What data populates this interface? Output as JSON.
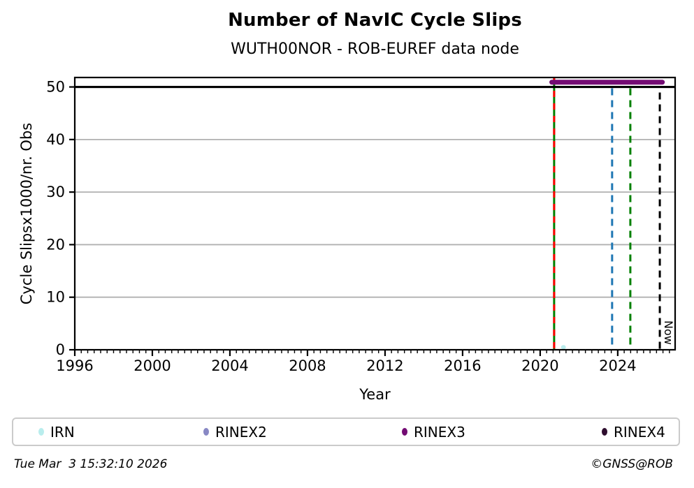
{
  "header": {
    "title": "Number of NavIC Cycle Slips",
    "subtitle": "WUTH00NOR - ROB-EUREF data node"
  },
  "footer": {
    "generated": "Tue Mar  3 15:32:10 2026",
    "copyright": "©GNSS@ROB"
  },
  "legend": {
    "items": [
      {
        "label": "IRN",
        "color": "#b9eded"
      },
      {
        "label": "RINEX2",
        "color": "#8888c4"
      },
      {
        "label": "RINEX3",
        "color": "#730b73"
      },
      {
        "label": "RINEX4",
        "color": "#2e0e2e"
      }
    ]
  },
  "chart_data": {
    "type": "line",
    "title": "Number of NavIC Cycle Slips",
    "subtitle": "WUTH00NOR - ROB-EUREF data node",
    "xlabel": "Year",
    "ylabel": "Cycle Slipsx1000/nr. Obs",
    "xlim": [
      1996,
      2026.96
    ],
    "ylim": [
      0,
      51.8
    ],
    "x_ticks": [
      1996,
      2000,
      2004,
      2008,
      2012,
      2016,
      2020,
      2024
    ],
    "x_minor_step_years": 0.33333,
    "y_ticks": [
      0,
      10,
      20,
      30,
      40,
      50
    ],
    "y_gridlines": [
      10,
      20,
      30,
      40
    ],
    "grid_on": true,
    "grid_color": "#b0b0b0",
    "legend_position": "below",
    "reference_line": {
      "y": 50,
      "color": "#000000"
    },
    "series": [
      {
        "name": "IRN",
        "type": "scatter",
        "color": "#b9eded",
        "points": [
          [
            2021.2,
            0.5
          ]
        ]
      },
      {
        "name": "RINEX2",
        "type": "scatter",
        "color": "#8888c4",
        "points": []
      },
      {
        "name": "RINEX3",
        "type": "line",
        "color": "#730b73",
        "linewidth": 7,
        "clipped_above": 50,
        "points": [
          [
            2020.6,
            50.9
          ],
          [
            2026.3,
            50.9
          ]
        ]
      },
      {
        "name": "RINEX4",
        "type": "scatter",
        "color": "#2e0e2e",
        "points": []
      }
    ],
    "event_lines": [
      {
        "x": 2020.72,
        "color": "#008000",
        "style": "solid",
        "full_height": true,
        "label": ""
      },
      {
        "x": 2020.72,
        "color": "#ff0000",
        "style": "dashed",
        "full_height": true,
        "label": ""
      },
      {
        "x": 2023.71,
        "color": "#1f77b4",
        "style": "dashed",
        "full_height": false,
        "label": ""
      },
      {
        "x": 2024.65,
        "color": "#008000",
        "style": "dashed",
        "full_height": false,
        "label": ""
      },
      {
        "x": 2026.17,
        "color": "#000000",
        "style": "dashed",
        "full_height": false,
        "label": "Now"
      }
    ],
    "now_label": "Now"
  }
}
